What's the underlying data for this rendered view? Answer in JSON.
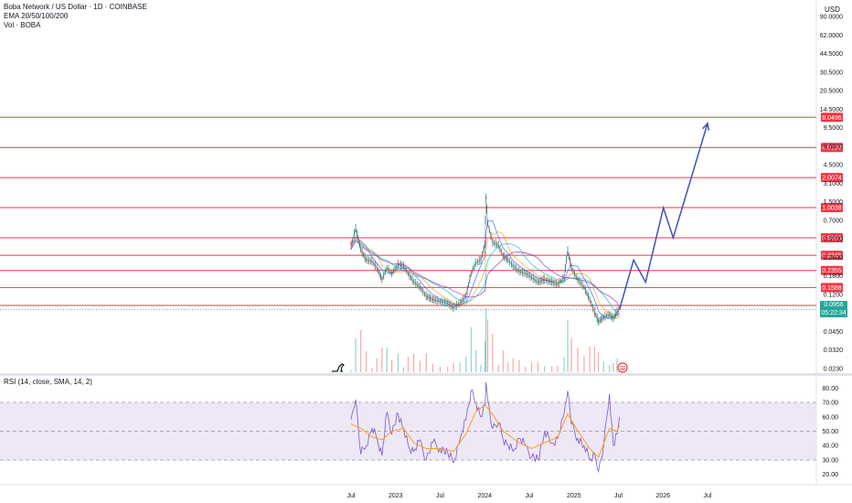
{
  "header": {
    "symbol": "Boba Network / US Dollar · 1D · COINBASE",
    "indicator": "EMA 20/50/100/200",
    "volume": "Vol · BOBA",
    "currency": "USD"
  },
  "rsi_header": "RSI (14, close, SMA, 14, 2)",
  "price_badge": {
    "price": "0.0956",
    "countdown": "05:22:34"
  },
  "colors": {
    "level_line": "#f23645",
    "projection": "#3f51b5",
    "price_badge": "#26a69a",
    "rsi_line": "#7e57c2",
    "rsi_ma": "#ff9800",
    "rsi_band": "#ede7f6",
    "candle_up": "#26a69a",
    "candle_down": "#ef5350"
  },
  "chart_data": [
    {
      "type": "line",
      "title": "Boba Network / US Dollar · 1D · COINBASE",
      "y_scale": "log",
      "x_ticks": [
        "Jul",
        "2023",
        "Jul",
        "2024",
        "Jul",
        "2025",
        "Jul",
        "2026",
        "Jul"
      ],
      "y_ticks": [
        "90.0000",
        "62.0000",
        "44.5000",
        "30.5000",
        "20.5000",
        "14.5000",
        "9.5000",
        "6.5000",
        "4.5000",
        "3.1000",
        "1.5000",
        "0.7000",
        "0.3700",
        "0.2600",
        "0.1800",
        "0.1200",
        "0.0650",
        "0.0450",
        "0.0320",
        "0.0230"
      ],
      "price_levels": [
        {
          "value": 8.0496,
          "label": "8.0496"
        },
        {
          "value": 4.0198,
          "label": "4.0198"
        },
        {
          "value": 2.0074,
          "label": "2.0074"
        },
        {
          "value": 1.0038,
          "label": "1.0038"
        },
        {
          "value": 0.5003,
          "label": "0.5003"
        },
        {
          "value": 0.3345,
          "label": "0.3345"
        },
        {
          "value": 0.2355,
          "label": "0.2355"
        },
        {
          "value": 0.1588,
          "label": "0.1588"
        },
        {
          "value": 0.1051,
          "label": "0.1051"
        }
      ],
      "series": [
        {
          "name": "BOBA",
          "points": [
            [
              "2022-07-01",
              0.42
            ],
            [
              "2022-07-20",
              0.62
            ],
            [
              "2022-08-10",
              0.38
            ],
            [
              "2022-09-01",
              0.3
            ],
            [
              "2022-09-25",
              0.29
            ],
            [
              "2022-10-15",
              0.25
            ],
            [
              "2022-11-05",
              0.19
            ],
            [
              "2022-11-25",
              0.25
            ],
            [
              "2022-12-15",
              0.22
            ],
            [
              "2023-01-10",
              0.27
            ],
            [
              "2023-02-01",
              0.26
            ],
            [
              "2023-02-20",
              0.22
            ],
            [
              "2023-03-15",
              0.18
            ],
            [
              "2023-04-10",
              0.16
            ],
            [
              "2023-05-05",
              0.13
            ],
            [
              "2023-06-01",
              0.12
            ],
            [
              "2023-07-01",
              0.115
            ],
            [
              "2023-08-01",
              0.11
            ],
            [
              "2023-08-25",
              0.1
            ],
            [
              "2023-09-20",
              0.11
            ],
            [
              "2023-10-15",
              0.13
            ],
            [
              "2023-11-05",
              0.22
            ],
            [
              "2023-11-25",
              0.28
            ],
            [
              "2023-12-15",
              0.3
            ],
            [
              "2024-01-01",
              0.43
            ],
            [
              "2024-01-05",
              1.3
            ],
            [
              "2024-01-12",
              0.7
            ],
            [
              "2024-02-01",
              0.45
            ],
            [
              "2024-02-25",
              0.42
            ],
            [
              "2024-03-15",
              0.33
            ],
            [
              "2024-04-05",
              0.3
            ],
            [
              "2024-04-25",
              0.26
            ],
            [
              "2024-05-20",
              0.23
            ],
            [
              "2024-06-15",
              0.22
            ],
            [
              "2024-07-10",
              0.2
            ],
            [
              "2024-08-05",
              0.18
            ],
            [
              "2024-09-01",
              0.19
            ],
            [
              "2024-10-01",
              0.18
            ],
            [
              "2024-10-25",
              0.17
            ],
            [
              "2024-11-20",
              0.2
            ],
            [
              "2024-12-05",
              0.37
            ],
            [
              "2024-12-20",
              0.25
            ],
            [
              "2025-01-15",
              0.19
            ],
            [
              "2025-02-10",
              0.16
            ],
            [
              "2025-03-05",
              0.12
            ],
            [
              "2025-03-25",
              0.09
            ],
            [
              "2025-04-10",
              0.072
            ],
            [
              "2025-05-01",
              0.08
            ],
            [
              "2025-05-25",
              0.085
            ],
            [
              "2025-06-10",
              0.078
            ],
            [
              "2025-06-25",
              0.09
            ],
            [
              "2025-07-05",
              0.0956
            ]
          ]
        },
        {
          "name": "Projection",
          "points": [
            [
              "2025-07-05",
              0.0956
            ],
            [
              "2025-09-01",
              0.3
            ],
            [
              "2025-10-20",
              0.18
            ],
            [
              "2026-01-01",
              1.0
            ],
            [
              "2026-02-10",
              0.5
            ],
            [
              "2026-07-01",
              7.0
            ]
          ]
        }
      ]
    },
    {
      "type": "line",
      "title": "RSI (14, close, SMA, 14, 2)",
      "y_ticks": [
        "80.00",
        "70.00",
        "60.00",
        "50.00",
        "40.00",
        "30.00",
        "20.00"
      ],
      "ylim": [
        16,
        84
      ],
      "bands": [
        70,
        50,
        30
      ],
      "series": [
        {
          "name": "RSI",
          "points": [
            [
              "2022-07-01",
              58
            ],
            [
              "2022-07-20",
              72
            ],
            [
              "2022-08-10",
              34
            ],
            [
              "2022-09-01",
              40
            ],
            [
              "2022-09-25",
              52
            ],
            [
              "2022-10-15",
              45
            ],
            [
              "2022-11-05",
              33
            ],
            [
              "2022-11-25",
              63
            ],
            [
              "2022-12-15",
              48
            ],
            [
              "2023-01-10",
              62
            ],
            [
              "2023-02-01",
              52
            ],
            [
              "2023-02-20",
              40
            ],
            [
              "2023-03-15",
              36
            ],
            [
              "2023-04-10",
              44
            ],
            [
              "2023-05-05",
              30
            ],
            [
              "2023-06-01",
              42
            ],
            [
              "2023-07-01",
              38
            ],
            [
              "2023-08-01",
              35
            ],
            [
              "2023-08-25",
              28
            ],
            [
              "2023-09-20",
              44
            ],
            [
              "2023-10-15",
              58
            ],
            [
              "2023-11-05",
              78
            ],
            [
              "2023-11-25",
              70
            ],
            [
              "2023-12-15",
              60
            ],
            [
              "2024-01-01",
              68
            ],
            [
              "2024-01-05",
              84
            ],
            [
              "2024-01-12",
              72
            ],
            [
              "2024-02-01",
              52
            ],
            [
              "2024-02-25",
              56
            ],
            [
              "2024-03-15",
              44
            ],
            [
              "2024-04-05",
              40
            ],
            [
              "2024-04-25",
              36
            ],
            [
              "2024-05-20",
              45
            ],
            [
              "2024-06-15",
              40
            ],
            [
              "2024-07-10",
              32
            ],
            [
              "2024-08-05",
              30
            ],
            [
              "2024-09-01",
              50
            ],
            [
              "2024-10-01",
              42
            ],
            [
              "2024-10-25",
              45
            ],
            [
              "2024-11-20",
              62
            ],
            [
              "2024-12-05",
              78
            ],
            [
              "2024-12-20",
              55
            ],
            [
              "2025-01-15",
              45
            ],
            [
              "2025-02-10",
              40
            ],
            [
              "2025-03-05",
              30
            ],
            [
              "2025-03-25",
              34
            ],
            [
              "2025-04-10",
              22
            ],
            [
              "2025-05-01",
              40
            ],
            [
              "2025-05-25",
              76
            ],
            [
              "2025-06-10",
              40
            ],
            [
              "2025-06-25",
              48
            ],
            [
              "2025-07-05",
              60
            ]
          ]
        },
        {
          "name": "RSI-based MA",
          "points": [
            [
              "2022-07-01",
              55
            ],
            [
              "2022-08-10",
              52
            ],
            [
              "2022-09-25",
              46
            ],
            [
              "2022-11-05",
              44
            ],
            [
              "2022-12-15",
              50
            ],
            [
              "2023-02-01",
              52
            ],
            [
              "2023-03-15",
              42
            ],
            [
              "2023-05-05",
              38
            ],
            [
              "2023-07-01",
              38
            ],
            [
              "2023-08-25",
              36
            ],
            [
              "2023-10-15",
              48
            ],
            [
              "2023-11-25",
              64
            ],
            [
              "2024-01-01",
              68
            ],
            [
              "2024-02-01",
              62
            ],
            [
              "2024-03-15",
              50
            ],
            [
              "2024-05-20",
              42
            ],
            [
              "2024-07-10",
              38
            ],
            [
              "2024-09-01",
              42
            ],
            [
              "2024-10-25",
              46
            ],
            [
              "2024-12-05",
              62
            ],
            [
              "2025-01-15",
              50
            ],
            [
              "2025-03-05",
              38
            ],
            [
              "2025-04-10",
              32
            ],
            [
              "2025-05-25",
              52
            ],
            [
              "2025-06-25",
              50
            ],
            [
              "2025-07-05",
              54
            ]
          ]
        }
      ]
    }
  ]
}
